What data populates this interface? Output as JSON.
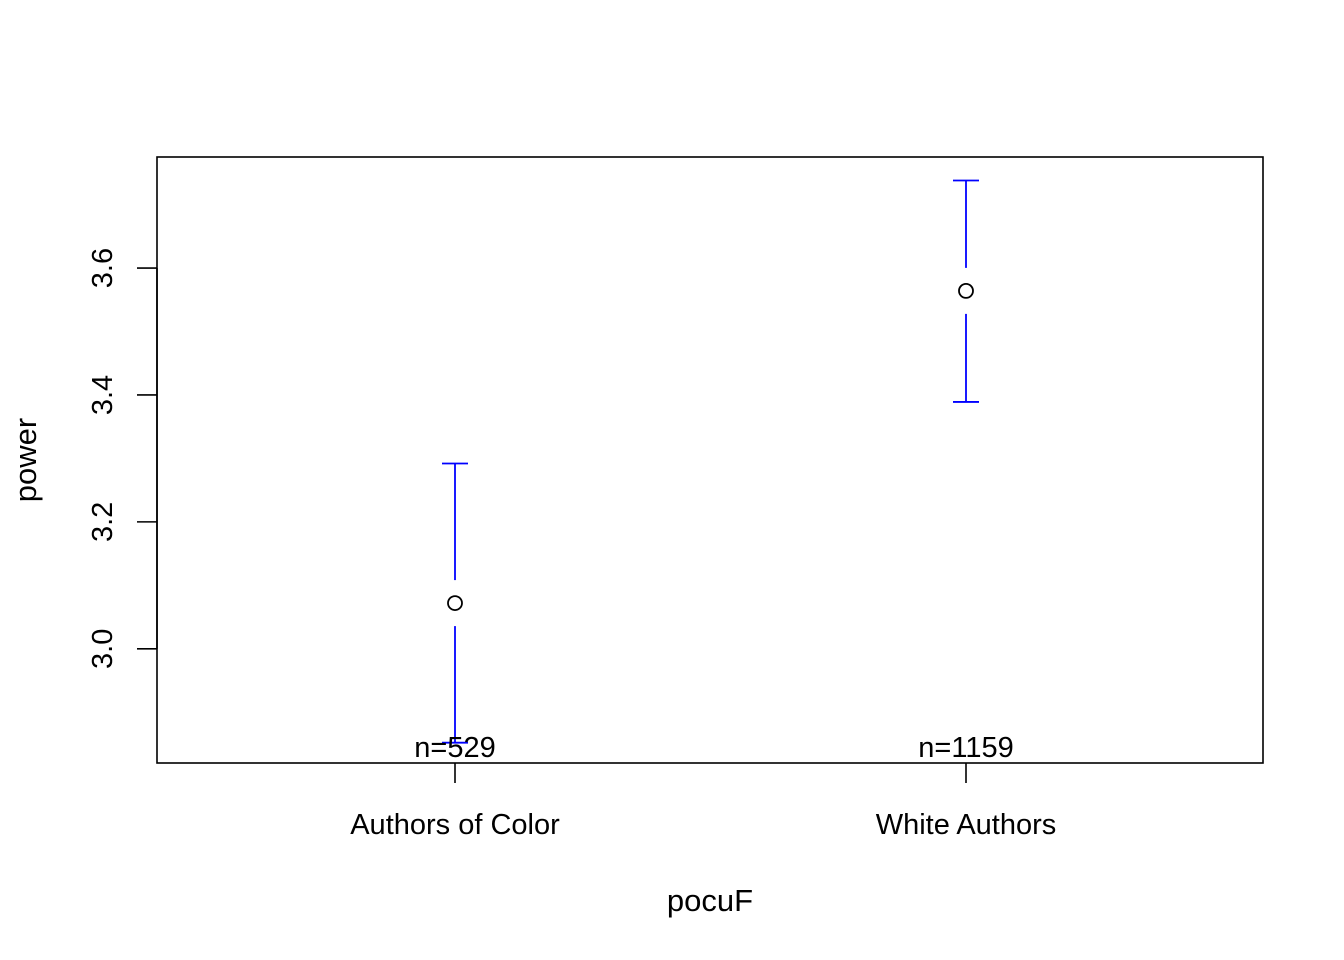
{
  "chart_data": {
    "type": "scatter",
    "title": "",
    "xlabel": "pocuF",
    "ylabel": "power",
    "categories": [
      "Authors of Color",
      "White Authors"
    ],
    "yticks": [
      "3.0",
      "3.2",
      "3.4",
      "3.6"
    ],
    "ylim": [
      2.82,
      3.775
    ],
    "grid": false,
    "series": [
      {
        "values": [
          3.072,
          3.564
        ],
        "lower": [
          2.852,
          3.389
        ],
        "upper": [
          3.292,
          3.738
        ],
        "counts": [
          "n=529",
          "n=1159"
        ]
      }
    ],
    "colors": {
      "errorbar": "#0000ff",
      "point": "#000000",
      "frame": "#000000"
    }
  }
}
